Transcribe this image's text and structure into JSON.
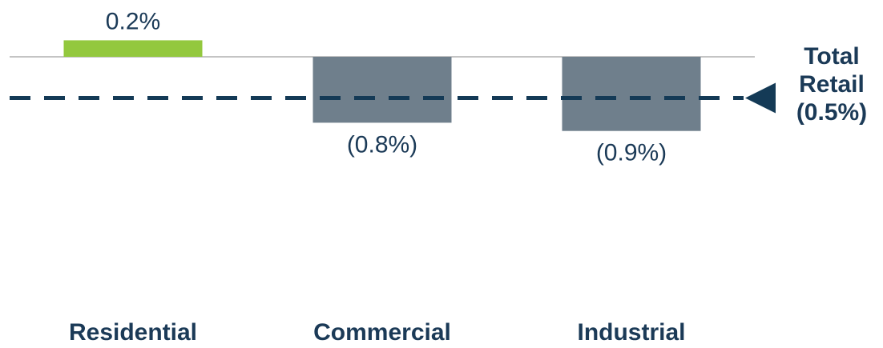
{
  "chart_data": {
    "type": "bar",
    "categories": [
      "Residential",
      "Commercial",
      "Industrial"
    ],
    "values": [
      0.2,
      -0.8,
      -0.9
    ],
    "value_labels": [
      "0.2%",
      "(0.8%)",
      "(0.9%)"
    ],
    "ylim": [
      -3.0,
      0.25
    ],
    "grid": false,
    "reference_line": {
      "value": -0.5,
      "label_lines": [
        "Total",
        "Retail",
        "(0.5%)"
      ]
    },
    "colors": {
      "positive": "#93c83e",
      "negative": "#6f7f8c",
      "baseline": "#b0b0b0",
      "reference": "#143a56",
      "text": "#1b3a57"
    }
  }
}
